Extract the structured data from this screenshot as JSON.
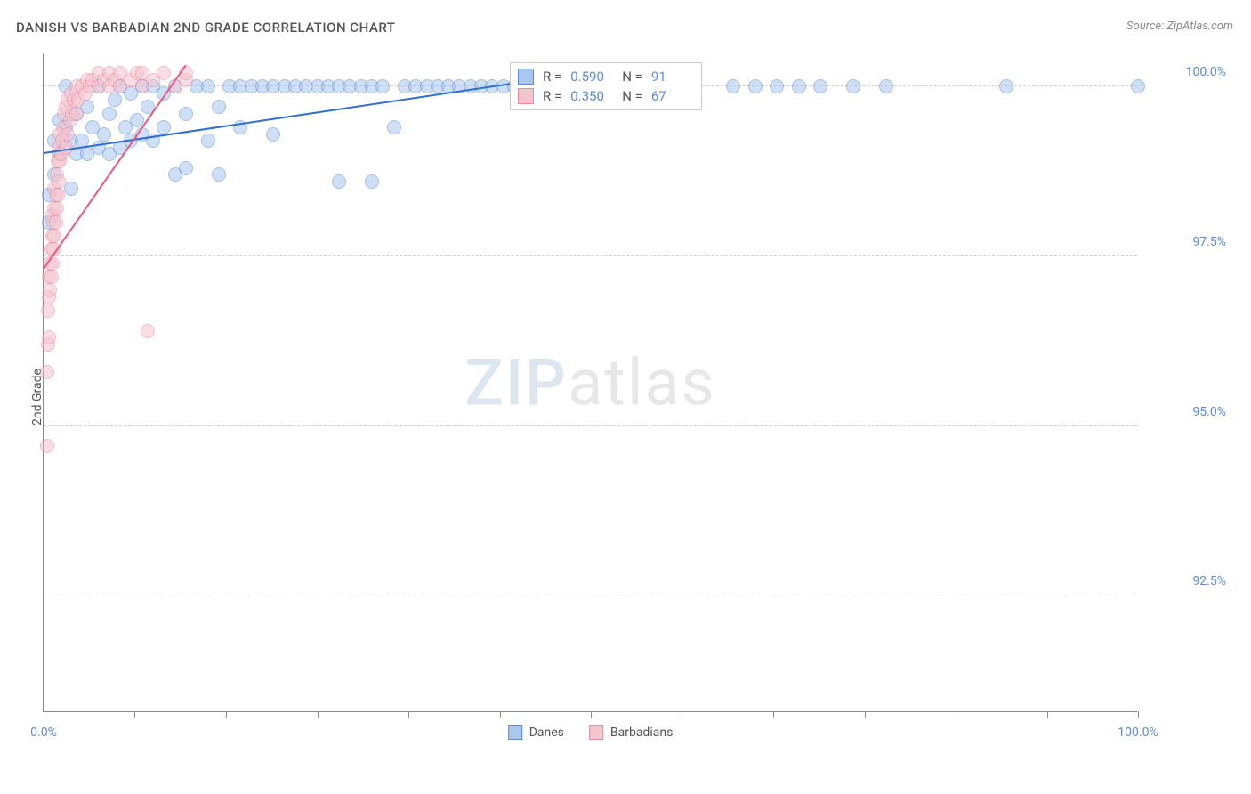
{
  "title": "DANISH VS BARBADIAN 2ND GRADE CORRELATION CHART",
  "source": "Source: ZipAtlas.com",
  "ylabel": "2nd Grade",
  "watermark": {
    "zip": "ZIP",
    "atlas": "atlas"
  },
  "chart": {
    "type": "scatter",
    "xlim": [
      0,
      100
    ],
    "ylim": [
      90.8,
      100.5
    ],
    "yticks": [
      {
        "v": 92.5,
        "label": "92.5%"
      },
      {
        "v": 95.0,
        "label": "95.0%"
      },
      {
        "v": 97.5,
        "label": "97.5%"
      },
      {
        "v": 100.0,
        "label": "100.0%"
      }
    ],
    "xticks_minor": [
      0,
      8.33,
      16.67,
      25,
      33.33,
      41.67,
      50,
      58.33,
      66.67,
      75,
      83.33,
      91.67,
      100
    ],
    "xticks_label": [
      {
        "v": 0,
        "label": "0.0%"
      },
      {
        "v": 100,
        "label": "100.0%"
      }
    ],
    "background_color": "#ffffff",
    "grid_color": "#d0d0d0",
    "axis_color": "#888888",
    "marker_radius": 8,
    "marker_opacity": 0.55,
    "series": [
      {
        "name": "Danes",
        "color_fill": "#a9c8ef",
        "color_stroke": "#5b8bd4",
        "r": "0.590",
        "n": "91",
        "trend": {
          "x1": 0,
          "y1": 99.0,
          "x2": 46,
          "y2": 100.1,
          "color": "#2e6fd1",
          "width": 2
        },
        "points": [
          [
            0.5,
            98.0
          ],
          [
            0.5,
            98.4
          ],
          [
            1.0,
            98.7
          ],
          [
            1.0,
            99.2
          ],
          [
            1.5,
            99.0
          ],
          [
            1.5,
            99.5
          ],
          [
            2.0,
            99.4
          ],
          [
            2.0,
            100.0
          ],
          [
            2.5,
            98.5
          ],
          [
            2.5,
            99.2
          ],
          [
            3.0,
            99.0
          ],
          [
            3.0,
            99.6
          ],
          [
            3.5,
            99.2
          ],
          [
            4.0,
            99.0
          ],
          [
            4.0,
            99.7
          ],
          [
            4.5,
            99.4
          ],
          [
            5.0,
            99.1
          ],
          [
            5.0,
            100.0
          ],
          [
            5.5,
            99.3
          ],
          [
            6.0,
            99.0
          ],
          [
            6.0,
            99.6
          ],
          [
            6.5,
            99.8
          ],
          [
            7.0,
            99.1
          ],
          [
            7.0,
            100.0
          ],
          [
            7.5,
            99.4
          ],
          [
            8.0,
            99.2
          ],
          [
            8.0,
            99.9
          ],
          [
            8.5,
            99.5
          ],
          [
            9.0,
            99.3
          ],
          [
            9.0,
            100.0
          ],
          [
            9.5,
            99.7
          ],
          [
            10.0,
            99.2
          ],
          [
            10.0,
            100.0
          ],
          [
            11.0,
            99.4
          ],
          [
            11.0,
            99.9
          ],
          [
            12.0,
            98.7
          ],
          [
            12.0,
            100.0
          ],
          [
            13.0,
            98.8
          ],
          [
            13.0,
            99.6
          ],
          [
            14.0,
            100.0
          ],
          [
            15.0,
            99.2
          ],
          [
            15.0,
            100.0
          ],
          [
            16.0,
            98.7
          ],
          [
            16.0,
            99.7
          ],
          [
            17.0,
            100.0
          ],
          [
            18.0,
            99.4
          ],
          [
            18.0,
            100.0
          ],
          [
            19.0,
            100.0
          ],
          [
            20.0,
            100.0
          ],
          [
            21.0,
            99.3
          ],
          [
            21.0,
            100.0
          ],
          [
            22.0,
            100.0
          ],
          [
            23.0,
            100.0
          ],
          [
            24.0,
            100.0
          ],
          [
            25.0,
            100.0
          ],
          [
            26.0,
            100.0
          ],
          [
            27.0,
            98.6
          ],
          [
            27.0,
            100.0
          ],
          [
            28.0,
            100.0
          ],
          [
            29.0,
            100.0
          ],
          [
            30.0,
            98.6
          ],
          [
            30.0,
            100.0
          ],
          [
            31.0,
            100.0
          ],
          [
            32.0,
            99.4
          ],
          [
            33.0,
            100.0
          ],
          [
            34.0,
            100.0
          ],
          [
            35.0,
            100.0
          ],
          [
            36.0,
            100.0
          ],
          [
            37.0,
            100.0
          ],
          [
            38.0,
            100.0
          ],
          [
            39.0,
            100.0
          ],
          [
            40.0,
            100.0
          ],
          [
            41.0,
            100.0
          ],
          [
            42.0,
            100.0
          ],
          [
            43.0,
            100.0
          ],
          [
            44.0,
            100.0
          ],
          [
            45.0,
            100.0
          ],
          [
            46.0,
            100.0
          ],
          [
            50.0,
            100.0
          ],
          [
            54.0,
            100.0
          ],
          [
            58.0,
            100.0
          ],
          [
            63.0,
            100.0
          ],
          [
            65.0,
            100.0
          ],
          [
            67.0,
            100.0
          ],
          [
            69.0,
            100.0
          ],
          [
            71.0,
            100.0
          ],
          [
            74.0,
            100.0
          ],
          [
            77.0,
            100.0
          ],
          [
            88.0,
            100.0
          ],
          [
            100.0,
            100.0
          ]
        ]
      },
      {
        "name": "Barbadians",
        "color_fill": "#f4c4cf",
        "color_stroke": "#e88aa0",
        "r": "0.350",
        "n": "67",
        "trend": {
          "x1": 0,
          "y1": 97.3,
          "x2": 13,
          "y2": 100.3,
          "color": "#e85a80",
          "width": 2
        },
        "points": [
          [
            0.3,
            94.7
          ],
          [
            0.3,
            95.8
          ],
          [
            0.4,
            96.2
          ],
          [
            0.4,
            96.7
          ],
          [
            0.5,
            96.3
          ],
          [
            0.5,
            96.9
          ],
          [
            0.5,
            97.2
          ],
          [
            0.6,
            97.0
          ],
          [
            0.6,
            97.4
          ],
          [
            0.7,
            97.2
          ],
          [
            0.7,
            97.6
          ],
          [
            0.8,
            97.4
          ],
          [
            0.8,
            97.8
          ],
          [
            0.8,
            98.1
          ],
          [
            0.9,
            97.6
          ],
          [
            0.9,
            98.0
          ],
          [
            1.0,
            97.8
          ],
          [
            1.0,
            98.2
          ],
          [
            1.0,
            98.5
          ],
          [
            1.1,
            98.0
          ],
          [
            1.1,
            98.4
          ],
          [
            1.2,
            98.2
          ],
          [
            1.2,
            98.7
          ],
          [
            1.3,
            98.4
          ],
          [
            1.3,
            98.9
          ],
          [
            1.4,
            98.6
          ],
          [
            1.4,
            99.1
          ],
          [
            1.5,
            98.9
          ],
          [
            1.5,
            99.3
          ],
          [
            1.6,
            99.0
          ],
          [
            1.7,
            99.2
          ],
          [
            1.8,
            99.4
          ],
          [
            1.9,
            99.6
          ],
          [
            2.0,
            99.1
          ],
          [
            2.0,
            99.7
          ],
          [
            2.2,
            99.3
          ],
          [
            2.2,
            99.8
          ],
          [
            2.4,
            99.5
          ],
          [
            2.5,
            99.9
          ],
          [
            2.6,
            99.6
          ],
          [
            2.8,
            99.8
          ],
          [
            3.0,
            99.6
          ],
          [
            3.0,
            100.0
          ],
          [
            3.2,
            99.8
          ],
          [
            3.5,
            100.0
          ],
          [
            3.8,
            99.9
          ],
          [
            4.0,
            100.1
          ],
          [
            4.2,
            100.0
          ],
          [
            4.5,
            100.1
          ],
          [
            5.0,
            100.0
          ],
          [
            5.0,
            100.2
          ],
          [
            5.5,
            100.1
          ],
          [
            6.0,
            100.0
          ],
          [
            6.0,
            100.2
          ],
          [
            6.5,
            100.1
          ],
          [
            7.0,
            100.0
          ],
          [
            7.0,
            100.2
          ],
          [
            8.0,
            100.1
          ],
          [
            8.5,
            100.2
          ],
          [
            9.0,
            100.0
          ],
          [
            9.0,
            100.2
          ],
          [
            9.5,
            96.4
          ],
          [
            10.0,
            100.1
          ],
          [
            11.0,
            100.2
          ],
          [
            12.0,
            100.0
          ],
          [
            13.0,
            100.1
          ],
          [
            13.0,
            100.2
          ]
        ]
      }
    ]
  },
  "legend_bottom": [
    {
      "label": "Danes",
      "fill": "#a9c8ef",
      "stroke": "#5b8bd4"
    },
    {
      "label": "Barbadians",
      "fill": "#f4c4cf",
      "stroke": "#e88aa0"
    }
  ]
}
